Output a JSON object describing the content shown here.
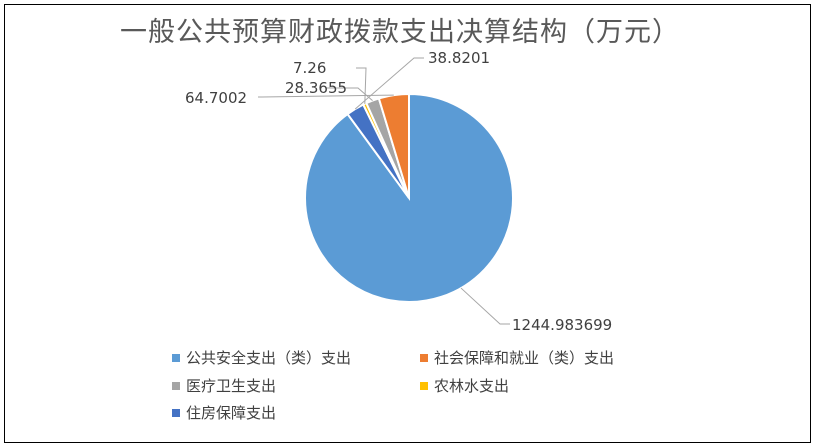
{
  "chart_data": {
    "type": "pie",
    "title": "一般公共预算财政拨款支出决算结构（万元）",
    "series": [
      {
        "name": "公共安全支出（类）支出",
        "value": 1244.983699,
        "label": "1244.983699",
        "color": "#5B9BD5"
      },
      {
        "name": "社会保障和就业（类）支出",
        "value": 64.7002,
        "label": "64.7002",
        "color": "#ED7D31"
      },
      {
        "name": "医疗卫生支出",
        "value": 28.3655,
        "label": "28.3655",
        "color": "#A5A5A5"
      },
      {
        "name": "农林水支出",
        "value": 7.26,
        "label": "7.26",
        "color": "#FFC000"
      },
      {
        "name": "住房保障支出",
        "value": 38.8201,
        "label": "38.8201",
        "color": "#4472C4"
      }
    ],
    "legend_position": "bottom"
  }
}
